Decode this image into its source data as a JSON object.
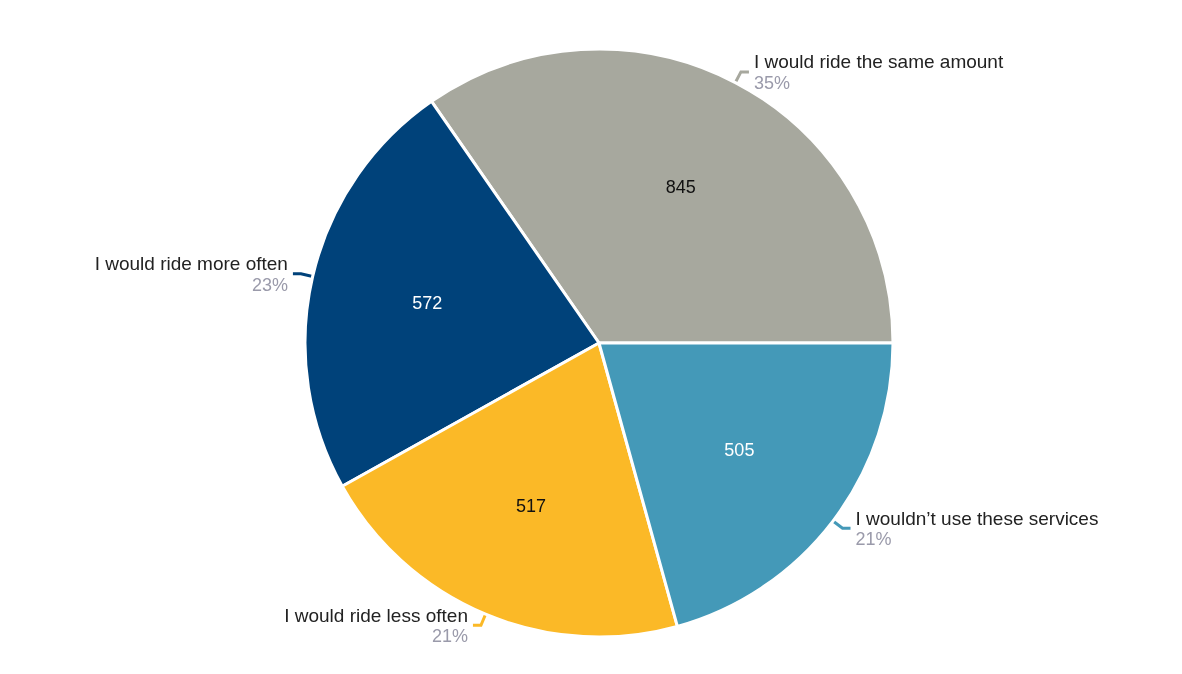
{
  "chart_data": {
    "type": "pie",
    "categories": [
      "I would ride the same amount",
      "I would ride more often",
      "I would ride less often",
      "I wouldn’t use these services"
    ],
    "values": [
      845,
      572,
      517,
      505
    ],
    "colors": [
      "#a7a89e",
      "#00427a",
      "#fbb927",
      "#4499b8"
    ],
    "data_labels": true,
    "annotations": [
      "35%",
      "23%",
      "21%",
      "21%"
    ],
    "legend": false
  }
}
